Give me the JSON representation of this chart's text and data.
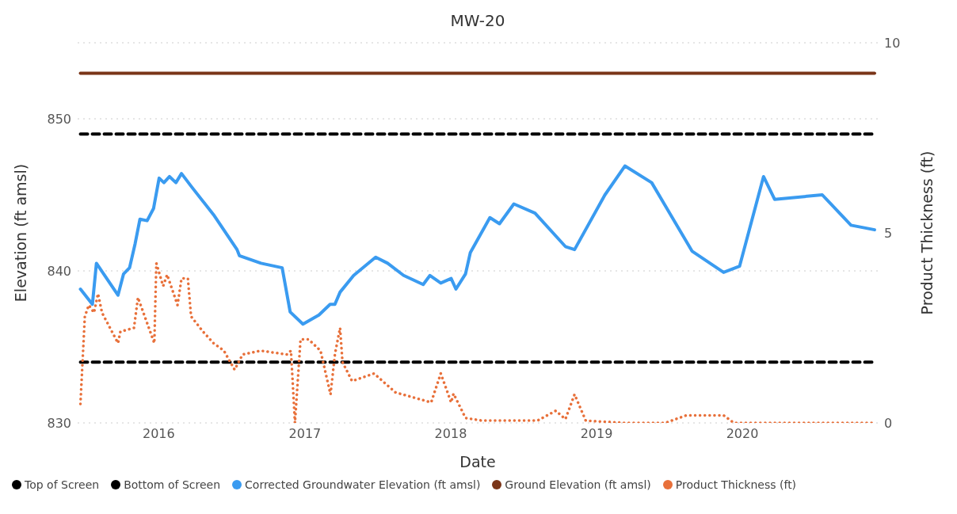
{
  "chart_data": {
    "type": "line",
    "title": "MW-20",
    "xlabel": "Date",
    "ylabel": "Elevation (ft amsl)",
    "y2label": "Product Thickness (ft)",
    "xlim": [
      "2015-06-12",
      "2020-12-05"
    ],
    "xticks": [
      "2016",
      "2017",
      "2018",
      "2019",
      "2020"
    ],
    "ylim": [
      830,
      855
    ],
    "yticks": [
      830,
      840,
      850
    ],
    "y2lim": [
      0,
      10
    ],
    "y2ticks": [
      0,
      5,
      10
    ],
    "grid": "y",
    "legend": "bottom",
    "marker": "none",
    "series": [
      {
        "name": "Top of Screen",
        "color": "#000000",
        "line_style": "dashed",
        "x": [
          "2015-06-19",
          "2020-11-27"
        ],
        "values": [
          849,
          849
        ]
      },
      {
        "name": "Bottom of Screen",
        "color": "#000000",
        "line_style": "dashed",
        "x": [
          "2015-06-19",
          "2020-11-27"
        ],
        "values": [
          834,
          834
        ]
      },
      {
        "name": "Corrected Groundwater Elevation (ft amsl)",
        "color": "#3a9bf0",
        "line_style": "solid",
        "x": [
          "2015-06-19",
          "2015-07-19",
          "2015-07-29",
          "2015-09-21",
          "2015-10-05",
          "2015-10-20",
          "2015-11-03",
          "2015-11-15",
          "2015-12-03",
          "2015-12-19",
          "2016-01-02",
          "2016-01-14",
          "2016-01-28",
          "2016-02-13",
          "2016-02-27",
          "2016-03-24",
          "2016-05-17",
          "2016-07-15",
          "2016-07-21",
          "2016-09-13",
          "2016-11-05",
          "2016-11-25",
          "2016-12-27",
          "2017-02-05",
          "2017-03-05",
          "2017-03-17",
          "2017-03-30",
          "2017-05-03",
          "2017-06-27",
          "2017-07-27",
          "2017-09-05",
          "2017-10-24",
          "2017-11-10",
          "2017-12-07",
          "2018-01-02",
          "2018-01-14",
          "2018-02-07",
          "2018-02-19",
          "2018-04-09",
          "2018-05-03",
          "2018-06-08",
          "2018-07-31",
          "2018-10-15",
          "2018-11-07",
          "2019-01-22",
          "2019-03-13",
          "2019-05-19",
          "2019-08-28",
          "2019-11-15",
          "2019-12-25",
          "2020-02-23",
          "2020-03-22",
          "2020-07-19",
          "2020-09-29",
          "2020-11-27"
        ],
        "values": [
          838.8,
          837.8,
          840.5,
          838.4,
          839.8,
          840.2,
          841.8,
          843.4,
          843.3,
          844.1,
          846.1,
          845.8,
          846.2,
          845.8,
          846.4,
          845.5,
          843.7,
          841.4,
          841.0,
          840.5,
          840.2,
          837.3,
          836.5,
          837.1,
          837.8,
          837.8,
          838.6,
          839.7,
          840.9,
          840.5,
          839.7,
          839.1,
          839.7,
          839.2,
          839.5,
          838.8,
          839.8,
          841.2,
          843.5,
          843.1,
          844.4,
          843.8,
          841.6,
          841.4,
          845.0,
          846.9,
          845.8,
          841.3,
          839.9,
          840.3,
          846.2,
          844.7,
          845.0,
          843.0,
          842.7
        ]
      },
      {
        "name": "Ground Elevation (ft amsl)",
        "color": "#7a3518",
        "line_style": "solid",
        "x": [
          "2015-06-19",
          "2020-11-27"
        ],
        "values": [
          853,
          853
        ]
      },
      {
        "name": "Product Thickness (ft)",
        "color": "#e8703a",
        "line_style": "dotted",
        "axis": "y2",
        "x": [
          "2015-06-19",
          "2015-06-30",
          "2015-07-10",
          "2015-07-23",
          "2015-08-02",
          "2015-08-12",
          "2015-09-21",
          "2015-09-27",
          "2015-10-31",
          "2015-11-10",
          "2015-12-21",
          "2015-12-26",
          "2016-01-12",
          "2016-01-22",
          "2016-02-17",
          "2016-02-27",
          "2016-03-14",
          "2016-03-22",
          "2016-04-21",
          "2016-05-17",
          "2016-06-12",
          "2016-07-09",
          "2016-07-29",
          "2016-09-13",
          "2016-11-17",
          "2016-11-27",
          "2016-12-07",
          "2016-12-21",
          "2017-01-10",
          "2017-02-09",
          "2017-03-06",
          "2017-03-17",
          "2017-03-30",
          "2017-04-05",
          "2017-04-29",
          "2017-06-23",
          "2017-08-16",
          "2017-11-13",
          "2017-12-07",
          "2018-01-02",
          "2018-01-08",
          "2018-02-07",
          "2018-03-20",
          "2018-08-06",
          "2018-09-21",
          "2018-10-15",
          "2018-11-07",
          "2018-12-05",
          "2019-03-14",
          "2019-06-22",
          "2019-08-14",
          "2019-11-15",
          "2019-12-11",
          "2020-11-27"
        ],
        "values": [
          0.5,
          2.8,
          3.1,
          2.9,
          3.4,
          2.9,
          2.1,
          2.4,
          2.5,
          3.3,
          2.1,
          4.2,
          3.6,
          3.9,
          3.1,
          3.8,
          3.8,
          2.8,
          2.4,
          2.1,
          1.9,
          1.4,
          1.8,
          1.9,
          1.8,
          1.9,
          0,
          2.2,
          2.2,
          1.9,
          0.75,
          1.8,
          2.5,
          1.6,
          1.1,
          1.3,
          0.8,
          0.54,
          1.3,
          0.54,
          0.77,
          0.13,
          0.06,
          0.06,
          0.32,
          0.1,
          0.75,
          0.06,
          0,
          0,
          0.2,
          0.2,
          0,
          0
        ]
      }
    ]
  }
}
